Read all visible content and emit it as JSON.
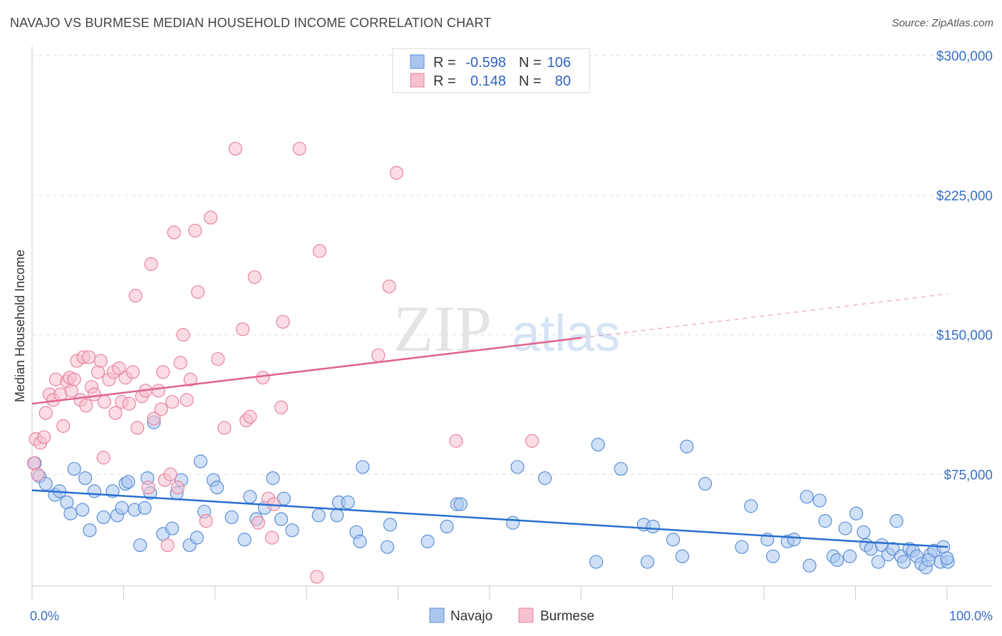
{
  "title": "NAVAJO VS BURMESE MEDIAN HOUSEHOLD INCOME CORRELATION CHART",
  "source": "Source: ZipAtlas.com",
  "watermark": {
    "zip": "ZIP",
    "atlas": "atlas"
  },
  "colors": {
    "navajo_fill": "#a9c6ef",
    "navajo_stroke": "#5b8fd8",
    "navajo_line": "#2a6fcf",
    "burmese_fill": "#f7bfd0",
    "burmese_stroke": "#e9849f",
    "burmese_line": "#e0628c",
    "axis_text": "#3a6fc4",
    "grid": "#dddddd"
  },
  "legend": {
    "rows": [
      {
        "r_label": "R =",
        "r_value": "-0.598",
        "n_label": "N =",
        "n_value": "106"
      },
      {
        "r_label": "R =",
        "r_value": "0.148",
        "n_label": "N =",
        "n_value": "80"
      }
    ]
  },
  "chart_data": {
    "type": "scatter",
    "title": "NAVAJO VS BURMESE MEDIAN HOUSEHOLD INCOME CORRELATION CHART",
    "xlabel": "",
    "ylabel": "Median Household Income",
    "xlim": [
      0,
      100
    ],
    "ylim": [
      15000,
      305000
    ],
    "x_tick_labels": [
      "0.0%",
      "100.0%"
    ],
    "y_ticks": [
      {
        "value": 75000,
        "label": "$75,000"
      },
      {
        "value": 150000,
        "label": "$150,000"
      },
      {
        "value": 225000,
        "label": "$225,000"
      },
      {
        "value": 300000,
        "label": "$300,000"
      }
    ],
    "grid": true,
    "legend_position": "bottom",
    "series": [
      {
        "name": "Navajo",
        "r": -0.598,
        "n": 106,
        "trend": {
          "x0": 0,
          "y0": 66500,
          "x1": 100,
          "y1": 36000,
          "solid_until": 100
        },
        "points": [
          [
            0.3,
            81000
          ],
          [
            0.8,
            74000
          ],
          [
            1.5,
            70000
          ],
          [
            2.5,
            64000
          ],
          [
            3,
            66000
          ],
          [
            3.8,
            60000
          ],
          [
            4.2,
            54000
          ],
          [
            4.6,
            78000
          ],
          [
            5.5,
            56000
          ],
          [
            5.8,
            73000
          ],
          [
            6.3,
            45000
          ],
          [
            6.8,
            66000
          ],
          [
            7.8,
            52000
          ],
          [
            8.8,
            66000
          ],
          [
            9.3,
            53000
          ],
          [
            9.8,
            57000
          ],
          [
            10.2,
            70000
          ],
          [
            10.5,
            71000
          ],
          [
            11.2,
            56000
          ],
          [
            11.8,
            37000
          ],
          [
            12.3,
            57000
          ],
          [
            12.6,
            73000
          ],
          [
            12.9,
            65000
          ],
          [
            13.3,
            103000
          ],
          [
            14.3,
            43000
          ],
          [
            15.3,
            46000
          ],
          [
            15.8,
            65000
          ],
          [
            16.3,
            72000
          ],
          [
            17.2,
            37000
          ],
          [
            18,
            41000
          ],
          [
            18.4,
            82000
          ],
          [
            18.8,
            55000
          ],
          [
            19.8,
            72000
          ],
          [
            20.2,
            68000
          ],
          [
            21.8,
            52000
          ],
          [
            23.2,
            40000
          ],
          [
            23.8,
            63000
          ],
          [
            24.5,
            51000
          ],
          [
            25.4,
            57000
          ],
          [
            26.3,
            73000
          ],
          [
            27.2,
            51000
          ],
          [
            27.5,
            62000
          ],
          [
            28.4,
            45000
          ],
          [
            31.3,
            53000
          ],
          [
            33.3,
            53000
          ],
          [
            33.5,
            60000
          ],
          [
            34.5,
            60000
          ],
          [
            35.4,
            44000
          ],
          [
            35.8,
            39000
          ],
          [
            36.1,
            79000
          ],
          [
            38.8,
            36000
          ],
          [
            39.1,
            48000
          ],
          [
            43.2,
            39000
          ],
          [
            45.3,
            47000
          ],
          [
            46.4,
            59000
          ],
          [
            46.8,
            59000
          ],
          [
            52.5,
            49000
          ],
          [
            53,
            79000
          ],
          [
            56,
            73000
          ],
          [
            61.6,
            28000
          ],
          [
            61.8,
            91000
          ],
          [
            64.3,
            78000
          ],
          [
            66.8,
            48000
          ],
          [
            67.2,
            28000
          ],
          [
            67.8,
            47000
          ],
          [
            70,
            40000
          ],
          [
            71,
            31000
          ],
          [
            71.5,
            90000
          ],
          [
            73.5,
            70000
          ],
          [
            77.5,
            36000
          ],
          [
            78.5,
            58000
          ],
          [
            80.3,
            40000
          ],
          [
            80.9,
            31000
          ],
          [
            82.5,
            39000
          ],
          [
            83.2,
            40000
          ],
          [
            84.6,
            63000
          ],
          [
            84.9,
            26000
          ],
          [
            86,
            61000
          ],
          [
            86.6,
            50000
          ],
          [
            87.5,
            31000
          ],
          [
            87.9,
            29000
          ],
          [
            88.8,
            46000
          ],
          [
            89.3,
            31000
          ],
          [
            90,
            54000
          ],
          [
            90.8,
            44000
          ],
          [
            91.1,
            37000
          ],
          [
            91.6,
            35000
          ],
          [
            92.4,
            28000
          ],
          [
            92.8,
            37000
          ],
          [
            93.5,
            32000
          ],
          [
            94,
            35000
          ],
          [
            94.4,
            50000
          ],
          [
            94.9,
            31000
          ],
          [
            95.2,
            28000
          ],
          [
            95.8,
            35000
          ],
          [
            96.2,
            34000
          ],
          [
            96.6,
            31000
          ],
          [
            97.1,
            27000
          ],
          [
            97.6,
            25000
          ],
          [
            98.1,
            32000
          ],
          [
            98.5,
            34000
          ],
          [
            99.2,
            28000
          ],
          [
            99.5,
            36000
          ],
          [
            100,
            28000
          ],
          [
            99.9,
            30000
          ],
          [
            97.9,
            29000
          ]
        ]
      },
      {
        "name": "Burmese",
        "r": 0.148,
        "n": 80,
        "trend": {
          "x0": 0,
          "y0": 113000,
          "x1": 100,
          "y1": 172000,
          "solid_until": 60
        },
        "points": [
          [
            0.2,
            81000
          ],
          [
            0.4,
            94000
          ],
          [
            0.6,
            75000
          ],
          [
            0.9,
            92000
          ],
          [
            1.3,
            95000
          ],
          [
            1.5,
            108000
          ],
          [
            1.9,
            118000
          ],
          [
            2.3,
            115000
          ],
          [
            2.6,
            126000
          ],
          [
            3.1,
            118000
          ],
          [
            3.4,
            101000
          ],
          [
            3.8,
            125000
          ],
          [
            4.1,
            127000
          ],
          [
            4.3,
            120000
          ],
          [
            4.6,
            126000
          ],
          [
            4.9,
            136000
          ],
          [
            5.3,
            115000
          ],
          [
            5.6,
            138000
          ],
          [
            5.9,
            112000
          ],
          [
            6.2,
            138000
          ],
          [
            6.5,
            122000
          ],
          [
            6.8,
            118000
          ],
          [
            7.2,
            130000
          ],
          [
            7.5,
            136000
          ],
          [
            7.8,
            84000
          ],
          [
            7.9,
            114000
          ],
          [
            8.4,
            126000
          ],
          [
            8.9,
            130000
          ],
          [
            9.1,
            108000
          ],
          [
            9.5,
            132000
          ],
          [
            9.8,
            114000
          ],
          [
            10.2,
            127000
          ],
          [
            10.6,
            113000
          ],
          [
            11,
            130000
          ],
          [
            11.3,
            171000
          ],
          [
            11.5,
            100000
          ],
          [
            12,
            117000
          ],
          [
            12.4,
            120000
          ],
          [
            12.7,
            68000
          ],
          [
            13,
            188000
          ],
          [
            13.3,
            105000
          ],
          [
            13.8,
            120000
          ],
          [
            14.1,
            110000
          ],
          [
            14.3,
            130000
          ],
          [
            14.5,
            72000
          ],
          [
            14.8,
            37000
          ],
          [
            15.1,
            75000
          ],
          [
            15.3,
            114000
          ],
          [
            15.5,
            205000
          ],
          [
            15.9,
            68000
          ],
          [
            16.2,
            135000
          ],
          [
            16.5,
            150000
          ],
          [
            16.9,
            115000
          ],
          [
            17.3,
            126000
          ],
          [
            17.8,
            206000
          ],
          [
            18.1,
            173000
          ],
          [
            19,
            50000
          ],
          [
            19.5,
            213000
          ],
          [
            20.3,
            137000
          ],
          [
            21,
            100000
          ],
          [
            22.2,
            250000
          ],
          [
            23,
            153000
          ],
          [
            23.4,
            104000
          ],
          [
            23.8,
            106000
          ],
          [
            24.3,
            181000
          ],
          [
            24.7,
            49000
          ],
          [
            25.2,
            127000
          ],
          [
            25.8,
            62000
          ],
          [
            26.2,
            41000
          ],
          [
            26.4,
            59000
          ],
          [
            27.2,
            111000
          ],
          [
            27.4,
            157000
          ],
          [
            29.2,
            250000
          ],
          [
            31.4,
            195000
          ],
          [
            31.1,
            20000
          ],
          [
            37.8,
            139000
          ],
          [
            39,
            176000
          ],
          [
            39.8,
            237000
          ],
          [
            46.3,
            93000
          ],
          [
            54.6,
            93000
          ]
        ]
      }
    ]
  }
}
